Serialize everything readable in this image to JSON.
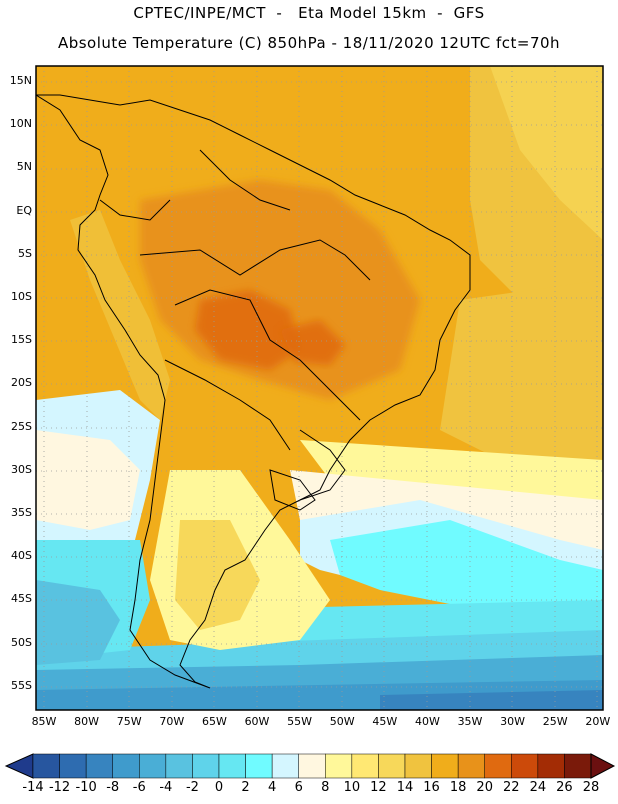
{
  "header": {
    "line1": "CPTEC/INPE/MCT  -   Eta Model 15km  -  GFS",
    "line2": "Absolute Temperature (C) 850hPa - 18/11/2020 12UTC fct=70h"
  },
  "map": {
    "lat_labels": [
      "15N",
      "10N",
      "5N",
      "EQ",
      "5S",
      "10S",
      "15S",
      "20S",
      "25S",
      "30S",
      "35S",
      "40S",
      "45S",
      "50S",
      "55S"
    ],
    "lon_labels": [
      "85W",
      "80W",
      "75W",
      "70W",
      "65W",
      "60W",
      "55W",
      "50W",
      "45W",
      "40W",
      "35W",
      "30W",
      "25W",
      "20W"
    ]
  },
  "colorbar": {
    "labels": [
      "-14",
      "-12",
      "-10",
      "-8",
      "-6",
      "-4",
      "-2",
      "0",
      "2",
      "4",
      "6",
      "8",
      "10",
      "12",
      "14",
      "16",
      "18",
      "20",
      "22",
      "24",
      "26",
      "28"
    ],
    "colors": [
      "#1f3b8c",
      "#27569f",
      "#2e6cb0",
      "#3784bf",
      "#3f9bcc",
      "#4aaed6",
      "#59c2e0",
      "#5fd3ea",
      "#66e7f2",
      "#70fbff",
      "#d4f6ff",
      "#fff7e0",
      "#fff89a",
      "#ffe873",
      "#f7d85a",
      "#f0c33f",
      "#f0ad1b",
      "#e8921a",
      "#e06a10",
      "#cc4a0a",
      "#a32c05",
      "#7a1a0a",
      "#6b1010"
    ]
  }
}
